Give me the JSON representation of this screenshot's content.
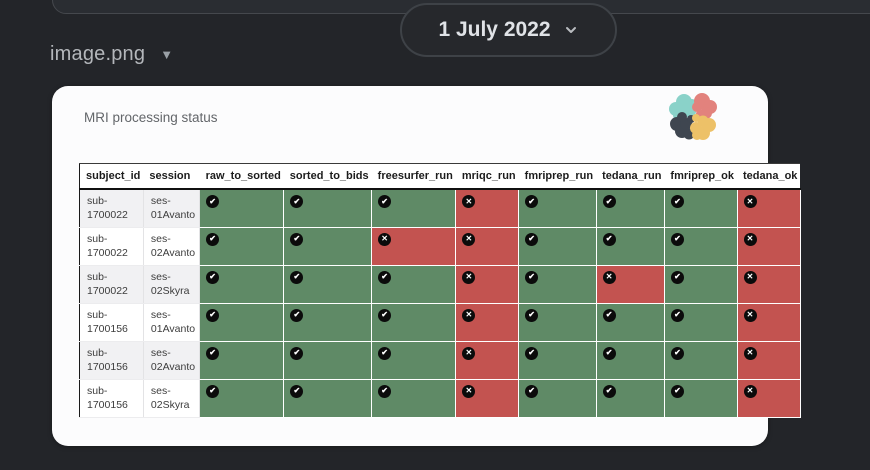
{
  "filename_bar": {
    "filename": "image.png"
  },
  "date_pill": {
    "label": "1 July 2022"
  },
  "card": {
    "title": "MRI processing status"
  },
  "logo": {
    "colors": {
      "top_left": "#8ad2c9",
      "top_right": "#e2827d",
      "bottom_left": "#3f4650",
      "bottom_right": "#edc168"
    }
  },
  "table": {
    "columns": [
      "subject_id",
      "session",
      "raw_to_sorted",
      "sorted_to_bids",
      "freesurfer_run",
      "mriqc_run",
      "fmriprep_run",
      "tedana_run",
      "fmriprep_ok",
      "tedana_ok"
    ],
    "rows": [
      {
        "subject_id": "sub-\n1700022",
        "session": "ses-\n01Avanto",
        "statuses": [
          "ok",
          "ok",
          "ok",
          "fail",
          "ok",
          "ok",
          "ok",
          "fail"
        ]
      },
      {
        "subject_id": "sub-\n1700022",
        "session": "ses-\n02Avanto",
        "statuses": [
          "ok",
          "ok",
          "fail",
          "fail",
          "ok",
          "ok",
          "ok",
          "fail"
        ]
      },
      {
        "subject_id": "sub-\n1700022",
        "session": "ses-\n02Skyra",
        "statuses": [
          "ok",
          "ok",
          "ok",
          "fail",
          "ok",
          "fail",
          "ok",
          "fail"
        ]
      },
      {
        "subject_id": "sub-\n1700156",
        "session": "ses-\n01Avanto",
        "statuses": [
          "ok",
          "ok",
          "ok",
          "fail",
          "ok",
          "ok",
          "ok",
          "fail"
        ]
      },
      {
        "subject_id": "sub-\n1700156",
        "session": "ses-\n02Avanto",
        "statuses": [
          "ok",
          "ok",
          "ok",
          "fail",
          "ok",
          "ok",
          "ok",
          "fail"
        ]
      },
      {
        "subject_id": "sub-\n1700156",
        "session": "ses-\n02Skyra",
        "statuses": [
          "ok",
          "ok",
          "ok",
          "fail",
          "ok",
          "ok",
          "ok",
          "fail"
        ]
      }
    ],
    "status_colors": {
      "ok": "#5f8a66",
      "fail": "#c35350"
    },
    "status_icons": {
      "ok": "✔",
      "fail": "✕"
    }
  }
}
